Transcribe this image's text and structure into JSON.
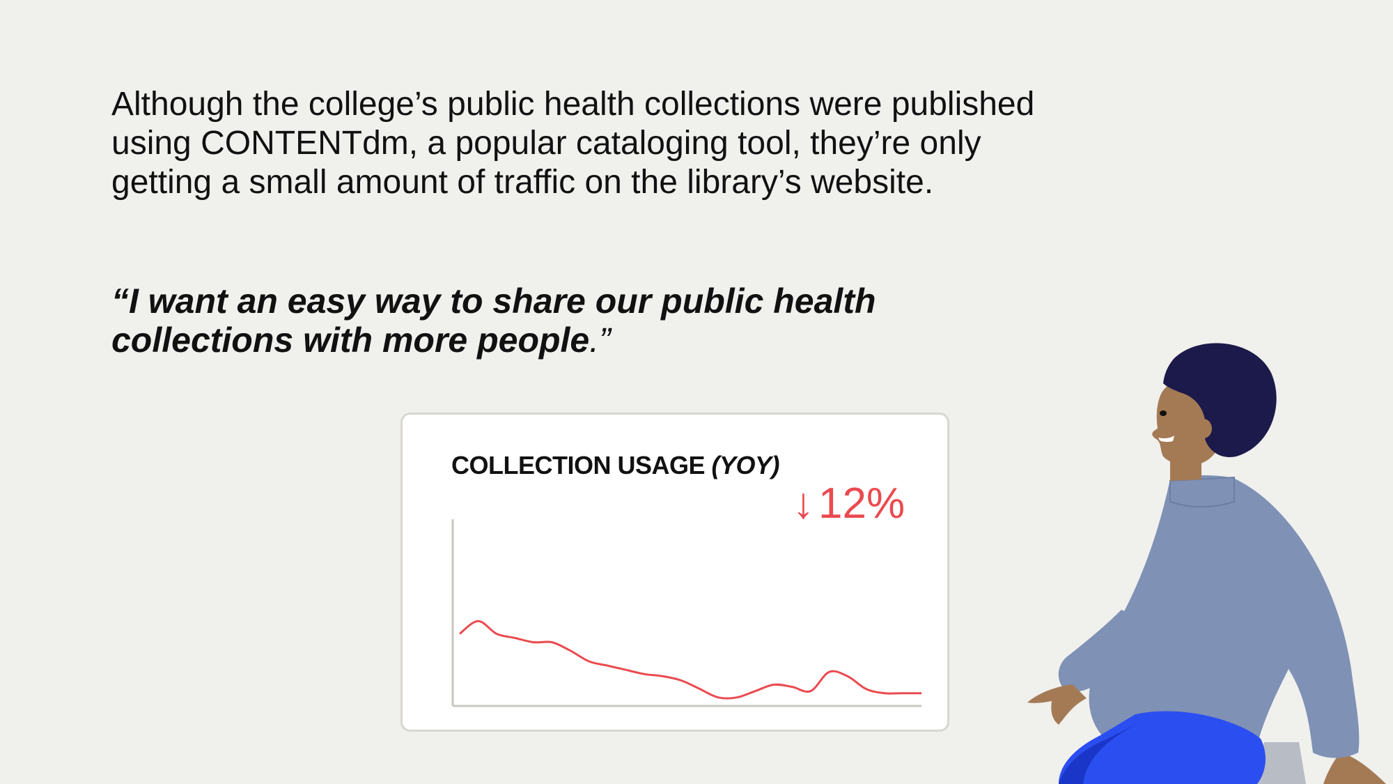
{
  "intro_text": "Although the college’s public health collections were published using CONTENTdm, a popular cataloging tool, they’re only getting a small amount of traffic on the library’s website.",
  "quote": {
    "bold_text": "“I want an easy way to share our public health collections with more people",
    "tail_text": ".”"
  },
  "card": {
    "title_main": "COLLECTION USAGE ",
    "title_italic": "(YOY)",
    "stat_arrow": "↓",
    "stat_value": "12%"
  },
  "colors": {
    "line": "#ea4a4f",
    "background": "#f0f0ed",
    "hair": "#1b1a4a",
    "sweater": "#7f91b5",
    "pants": "#2b4ef0",
    "skin": "#a47a55"
  },
  "chart_data": {
    "type": "line",
    "title": "COLLECTION USAGE (YOY)",
    "annotation": "↓ 12%",
    "x": [
      0,
      4,
      8,
      12,
      16,
      20,
      24,
      28,
      32,
      36,
      40,
      44,
      48,
      52,
      56,
      60,
      64,
      68,
      72,
      76,
      80,
      84,
      88,
      92,
      96,
      100
    ],
    "values": [
      30,
      36,
      30,
      28,
      26,
      26,
      22,
      17,
      15,
      13,
      11,
      10,
      8,
      4,
      0,
      0,
      3,
      6,
      5,
      3,
      12,
      10,
      4,
      2,
      2,
      2
    ],
    "xlim": [
      0,
      100
    ],
    "ylim": [
      -4,
      84
    ],
    "grid": false,
    "legend": "none"
  }
}
